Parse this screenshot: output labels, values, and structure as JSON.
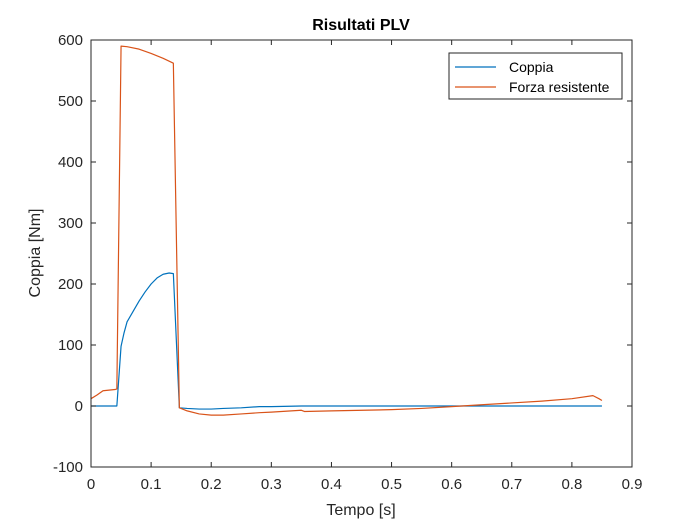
{
  "chart_data": {
    "type": "line",
    "title": "Risultati PLV",
    "xlabel": "Tempo [s]",
    "ylabel": "Coppia [Nm]",
    "xlim": [
      0,
      0.9
    ],
    "ylim": [
      -100,
      600
    ],
    "xticks": [
      0,
      0.1,
      0.2,
      0.3,
      0.4,
      0.5,
      0.6,
      0.7,
      0.8,
      0.9
    ],
    "xtick_labels": [
      "0",
      "0.1",
      "0.2",
      "0.3",
      "0.4",
      "0.5",
      "0.6",
      "0.7",
      "0.8",
      "0.9"
    ],
    "yticks": [
      -100,
      0,
      100,
      200,
      300,
      400,
      500,
      600
    ],
    "ytick_labels": [
      "-100",
      "0",
      "100",
      "200",
      "300",
      "400",
      "500",
      "600"
    ],
    "grid": false,
    "legend_position": "top-right",
    "series": [
      {
        "name": "Coppia",
        "color": "#0072BD",
        "x": [
          0,
          0.01,
          0.02,
          0.03,
          0.04,
          0.043,
          0.05,
          0.055,
          0.06,
          0.07,
          0.08,
          0.09,
          0.1,
          0.11,
          0.12,
          0.13,
          0.137,
          0.147,
          0.16,
          0.18,
          0.2,
          0.22,
          0.25,
          0.28,
          0.3,
          0.35,
          0.4,
          0.5,
          0.6,
          0.7,
          0.8,
          0.85
        ],
        "y": [
          0,
          0,
          0,
          0,
          0,
          0,
          98,
          120,
          138,
          155,
          172,
          187,
          200,
          210,
          216,
          218,
          217,
          -3,
          -4,
          -5,
          -5,
          -4,
          -3,
          -1,
          -1,
          0,
          0,
          0,
          0,
          0,
          0,
          0
        ]
      },
      {
        "name": "Forza resistente",
        "color": "#D95319",
        "x": [
          0,
          0.01,
          0.02,
          0.03,
          0.04,
          0.043,
          0.05,
          0.06,
          0.08,
          0.1,
          0.12,
          0.137,
          0.147,
          0.16,
          0.18,
          0.2,
          0.22,
          0.25,
          0.28,
          0.3,
          0.35,
          0.355,
          0.4,
          0.5,
          0.55,
          0.6,
          0.65,
          0.7,
          0.75,
          0.8,
          0.835,
          0.845,
          0.85
        ],
        "y": [
          12,
          18,
          25,
          26,
          27,
          28,
          590,
          589,
          585,
          578,
          570,
          562,
          -3,
          -8,
          -13,
          -15,
          -15,
          -13,
          -11,
          -10,
          -7,
          -9,
          -8,
          -6,
          -4,
          -1,
          2,
          5,
          8,
          12,
          17,
          12,
          9
        ]
      }
    ]
  }
}
